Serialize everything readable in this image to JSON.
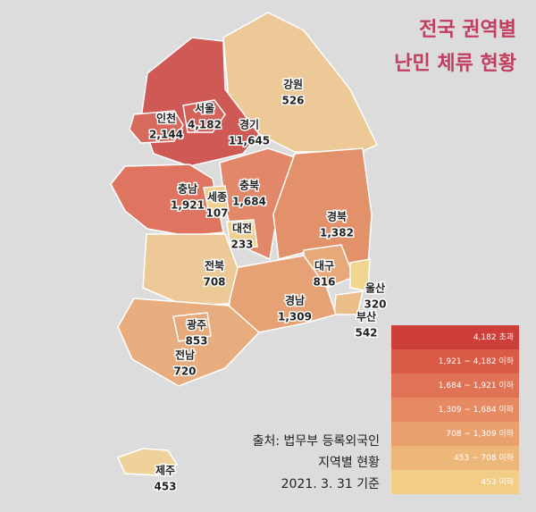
{
  "header": {
    "title_lines": [
      "전국 권역별",
      "난민 체류 현황"
    ]
  },
  "regions": [
    {
      "name": "강원",
      "value": 526,
      "label": "526",
      "color": "#ecc996"
    },
    {
      "name": "경기",
      "value": 11645,
      "label": "11,645",
      "color": "#cf5a55"
    },
    {
      "name": "서울",
      "value": 4182,
      "label": "4,182",
      "color": "#d3635a"
    },
    {
      "name": "인천",
      "value": 2144,
      "label": "2,144",
      "color": "#d76a5c"
    },
    {
      "name": "충남",
      "value": 1921,
      "label": "1,921",
      "color": "#df7560"
    },
    {
      "name": "충북",
      "value": 1684,
      "label": "1,684",
      "color": "#e28767"
    },
    {
      "name": "세종",
      "value": 107,
      "label": "107",
      "color": "#efd08f"
    },
    {
      "name": "대전",
      "value": 233,
      "label": "233",
      "color": "#efd08f"
    },
    {
      "name": "경북",
      "value": 1382,
      "label": "1,382",
      "color": "#e3916b"
    },
    {
      "name": "대구",
      "value": 816,
      "label": "816",
      "color": "#e8a97a"
    },
    {
      "name": "울산",
      "value": 320,
      "label": "320",
      "color": "#f0d590"
    },
    {
      "name": "부산",
      "value": 542,
      "label": "542",
      "color": "#ebbd88"
    },
    {
      "name": "경남",
      "value": 1309,
      "label": "1,309",
      "color": "#e6a275"
    },
    {
      "name": "전북",
      "value": 708,
      "label": "708",
      "color": "#ecc996"
    },
    {
      "name": "전남",
      "value": 720,
      "label": "720",
      "color": "#e8ad7e"
    },
    {
      "name": "광주",
      "value": 853,
      "label": "853",
      "color": "#e8a97a"
    },
    {
      "name": "제주",
      "value": 453,
      "label": "453",
      "color": "#eed29a"
    }
  ],
  "legend": [
    {
      "label": "4,182 초과",
      "color": "#cf3f3a"
    },
    {
      "label": "1,921 ~ 4,182 이하",
      "color": "#da5b45"
    },
    {
      "label": "1,684 ~ 1,921 이하",
      "color": "#e07355"
    },
    {
      "label": "1,309 ~ 1,684 이하",
      "color": "#e58a62"
    },
    {
      "label": "708 ~ 1,309 이하",
      "color": "#eaa06e"
    },
    {
      "label": "453 ~ 708 이하",
      "color": "#eeb77a"
    },
    {
      "label": "453 이하",
      "color": "#f2cd86"
    }
  ],
  "source_lines": [
    "출처: 법무부 등록외국인",
    "지역별 현황",
    "2021. 3. 31 기준"
  ]
}
